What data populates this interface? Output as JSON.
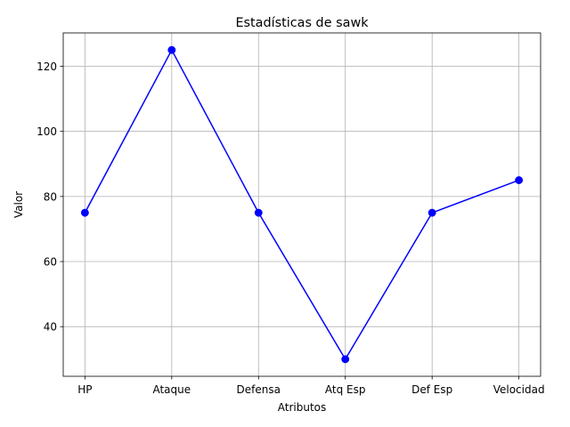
{
  "chart_data": {
    "type": "line",
    "title": "Estadísticas de sawk",
    "xlabel": "Atributos",
    "ylabel": "Valor",
    "categories": [
      "HP",
      "Ataque",
      "Defensa",
      "Atq Esp",
      "Def Esp",
      "Velocidad"
    ],
    "series": [
      {
        "values": [
          75,
          125,
          75,
          30,
          75,
          85
        ],
        "color": "#0000ff",
        "marker": "circle"
      }
    ],
    "ylim": [
      24.75,
      130.25
    ],
    "yticks": [
      40,
      60,
      80,
      100,
      120
    ],
    "grid": true
  }
}
